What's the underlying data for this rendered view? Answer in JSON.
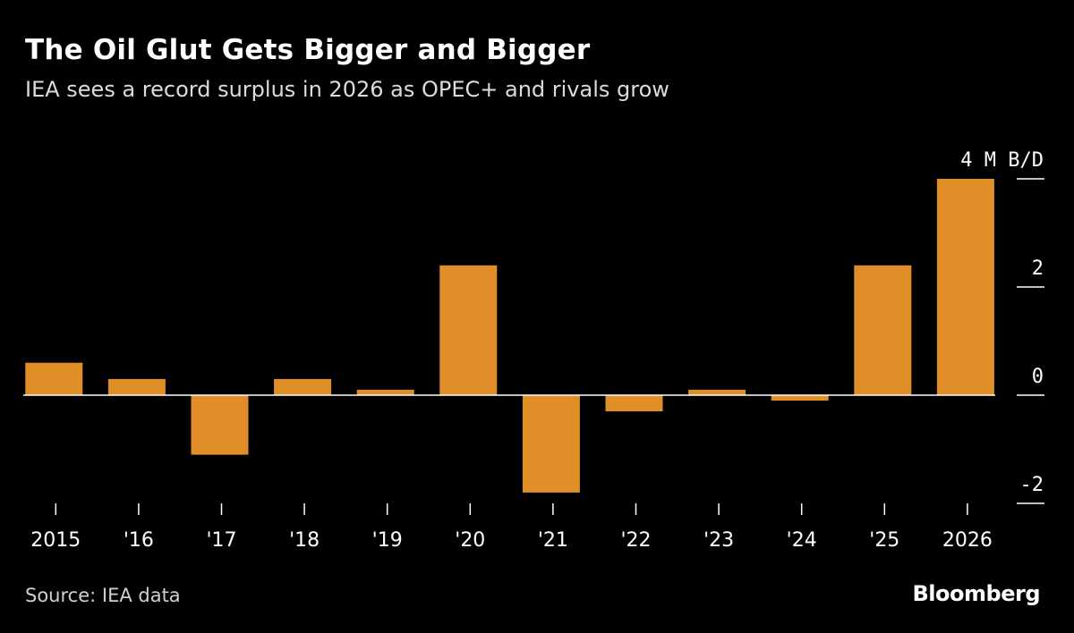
{
  "header": {
    "title": "The Oil Glut Gets Bigger and Bigger",
    "subtitle": "IEA sees a record surplus in 2026 as OPEC+ and rivals grow"
  },
  "footer": {
    "source": "Source: IEA data",
    "brand": "Bloomberg"
  },
  "colors": {
    "background": "#000000",
    "bar": "#e08e27",
    "axis": "#ffffff",
    "text": "#ffffff"
  },
  "chart_data": {
    "type": "bar",
    "categories": [
      "2015",
      "'16",
      "'17",
      "'18",
      "'19",
      "'20",
      "'21",
      "'22",
      "'23",
      "'24",
      "'25",
      "2026"
    ],
    "values": [
      0.6,
      0.3,
      -1.1,
      0.3,
      0.1,
      2.4,
      -1.8,
      -0.3,
      0.1,
      -0.1,
      2.4,
      4.0
    ],
    "ylim": [
      -2,
      4
    ],
    "yticks": [
      4,
      2,
      0,
      -2
    ],
    "ytick_labels": [
      "4 M B/D",
      "2",
      "0",
      "-2"
    ],
    "axis_position": "right",
    "grid": false,
    "legend": "none"
  }
}
